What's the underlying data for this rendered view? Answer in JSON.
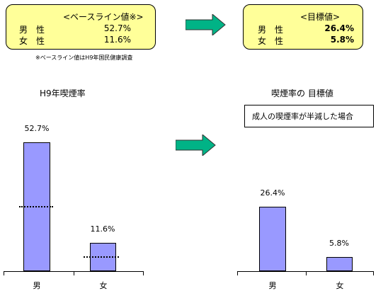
{
  "baseline_box": {
    "heading": "<ベースライン値※>",
    "rows": [
      {
        "label": "男　性",
        "value": "52.7%"
      },
      {
        "label": "女　性",
        "value": "11.6%"
      }
    ]
  },
  "footnote": "※ベースライン値はH9年国民健康調査",
  "target_box": {
    "heading": "<目標値>",
    "rows": [
      {
        "label": "男　性",
        "value": "26.4%"
      },
      {
        "label": "女　性",
        "value": "5.8%"
      }
    ]
  },
  "left_title": "H9年喫煙率",
  "right_title": "喫煙率の 目標値",
  "scenario_label": "成人の喫煙率が半減した場合",
  "colors": {
    "bar": "#9999ff",
    "box": "#ffff99",
    "arrow": "#00b386"
  },
  "chart_data": [
    {
      "type": "bar",
      "title": "H9年喫煙率",
      "categories": [
        "男",
        "女"
      ],
      "values": [
        52.7,
        11.6
      ],
      "value_labels": [
        "52.7%",
        "11.6%"
      ],
      "reference_lines": [
        26.4,
        5.8
      ],
      "ylim": [
        0,
        60
      ]
    },
    {
      "type": "bar",
      "title": "喫煙率の 目標値",
      "categories": [
        "男",
        "女"
      ],
      "values": [
        26.4,
        5.8
      ],
      "value_labels": [
        "26.4%",
        "5.8%"
      ],
      "ylim": [
        0,
        60
      ]
    }
  ]
}
